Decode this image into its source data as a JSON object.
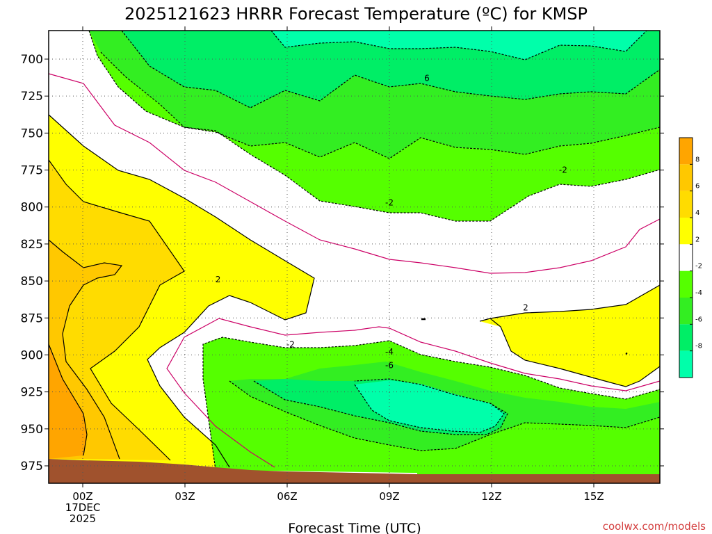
{
  "title": "2025121623 HRRR Forecast Temperature (ºC) for KMSP",
  "xlabel": "Forecast Time (UTC)",
  "credit": "coolwx.com/models",
  "chart_data": {
    "type": "heatmap",
    "title": "2025121623 HRRR Forecast Temperature (ºC) for KMSP",
    "xlabel": "Forecast Time (UTC)",
    "ylabel": "",
    "y_axis": "pressure (inverted)",
    "ylim": [
      980,
      680
    ],
    "xlim_hours": [
      -1,
      17
    ],
    "y_ticks": [
      700,
      725,
      750,
      775,
      800,
      825,
      850,
      875,
      900,
      925,
      950,
      975
    ],
    "x_ticks": [
      {
        "hour": 0,
        "label": "00Z",
        "sub1": "17DEC",
        "sub2": "2025"
      },
      {
        "hour": 3,
        "label": "03Z"
      },
      {
        "hour": 6,
        "label": "06Z"
      },
      {
        "hour": 9,
        "label": "09Z"
      },
      {
        "hour": 12,
        "label": "12Z"
      },
      {
        "hour": 15,
        "label": "15Z"
      }
    ],
    "grid": true,
    "colorbar": {
      "levels": [
        10,
        8,
        6,
        4,
        2,
        -2,
        -4,
        -6,
        -8,
        -10
      ],
      "labels": [
        "8",
        "6",
        "4",
        "2",
        "-2",
        "-4",
        "-6",
        "-8"
      ],
      "colors": [
        "#ffa500",
        "#ffc800",
        "#ffdc00",
        "#ffff00",
        "#ffffff",
        "#55ff00",
        "#33ee22",
        "#00ee66",
        "#00ffaa"
      ]
    },
    "contour_labels": [
      {
        "text": "6",
        "hour": 10.1,
        "p": 713
      },
      {
        "text": "-2",
        "hour": 14.1,
        "p": 775
      },
      {
        "text": "-2",
        "hour": 9.0,
        "p": 797
      },
      {
        "text": "2",
        "hour": 3.97,
        "p": 849
      },
      {
        "text": "2",
        "hour": 13.0,
        "p": 868
      },
      {
        "text": "-2",
        "hour": 6.1,
        "p": 893
      },
      {
        "text": "-4",
        "hour": 9.0,
        "p": 898
      },
      {
        "text": "-6",
        "hour": 9.0,
        "p": 907
      }
    ],
    "terrain_color": "#a0522d"
  }
}
